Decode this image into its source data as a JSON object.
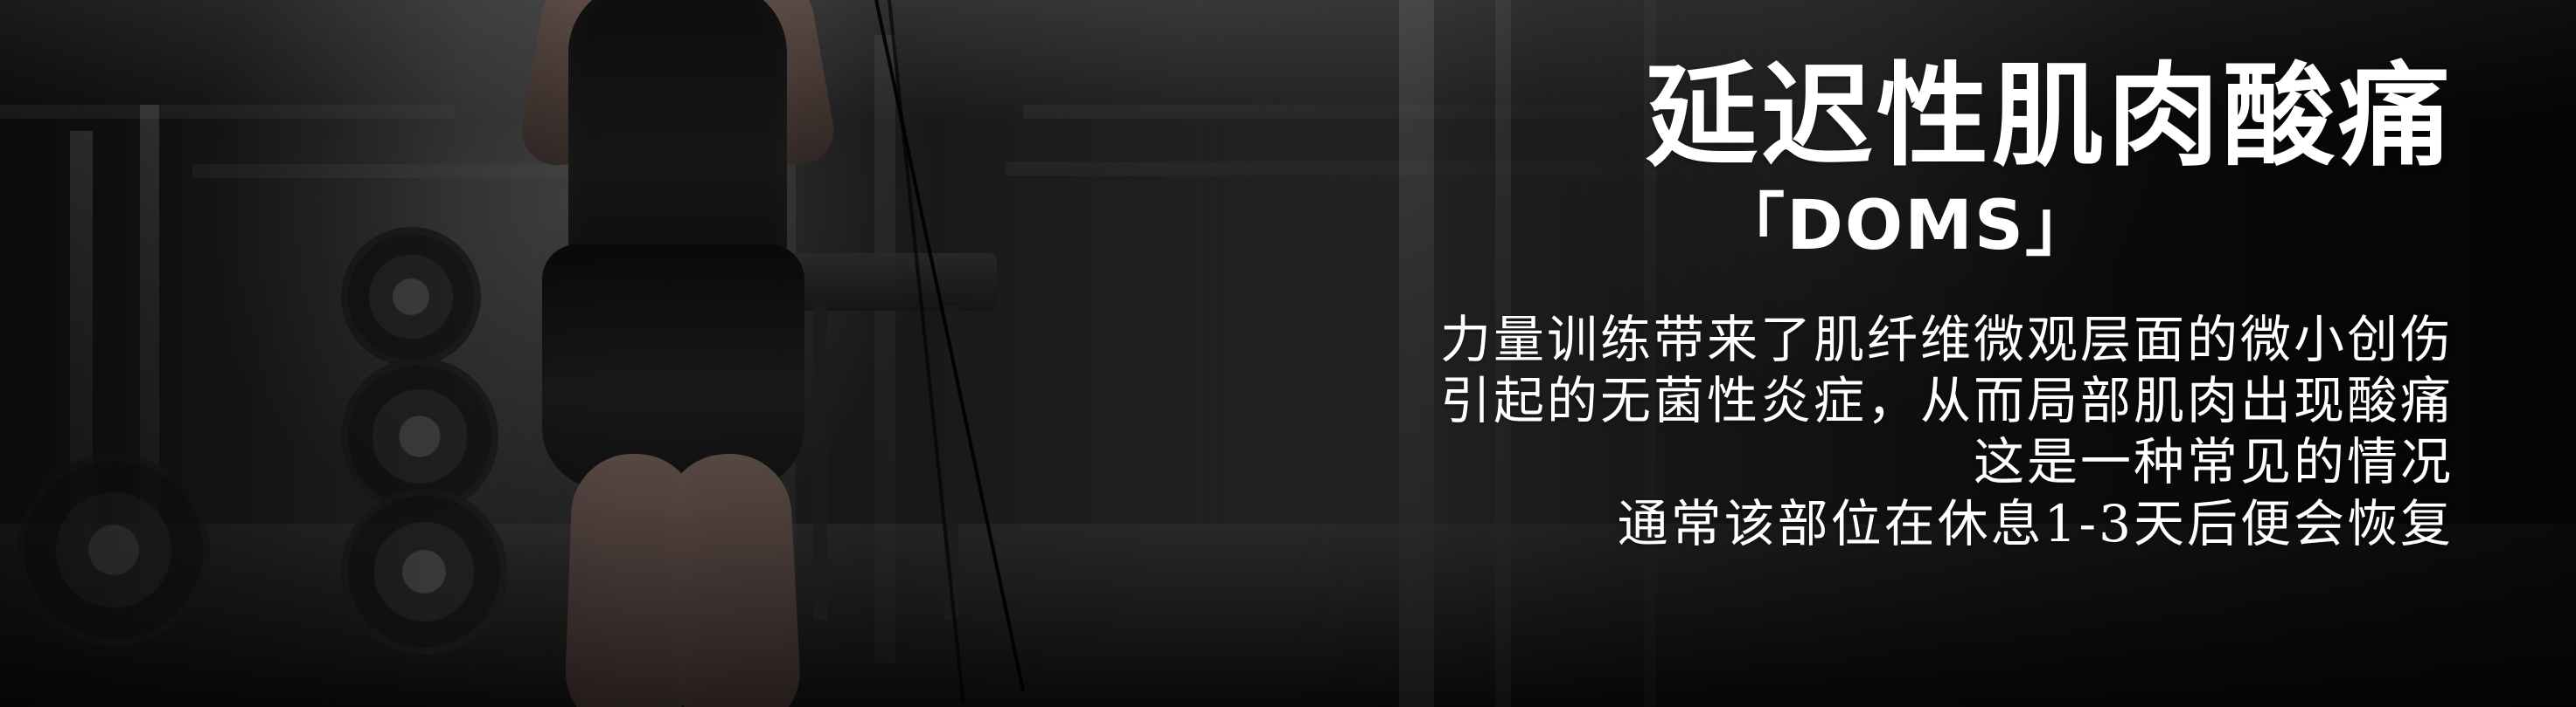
{
  "poster": {
    "title": "延迟性肌肉酸痛",
    "subtitle": "「DOMS」",
    "description": [
      "力量训练带来了肌纤维微观层面的微小创伤",
      "引起的无菌性炎症，从而局部肌肉出现酸痛",
      "这是一种常见的情况",
      "通常该部位在休息1-3天后便会恢复"
    ]
  }
}
